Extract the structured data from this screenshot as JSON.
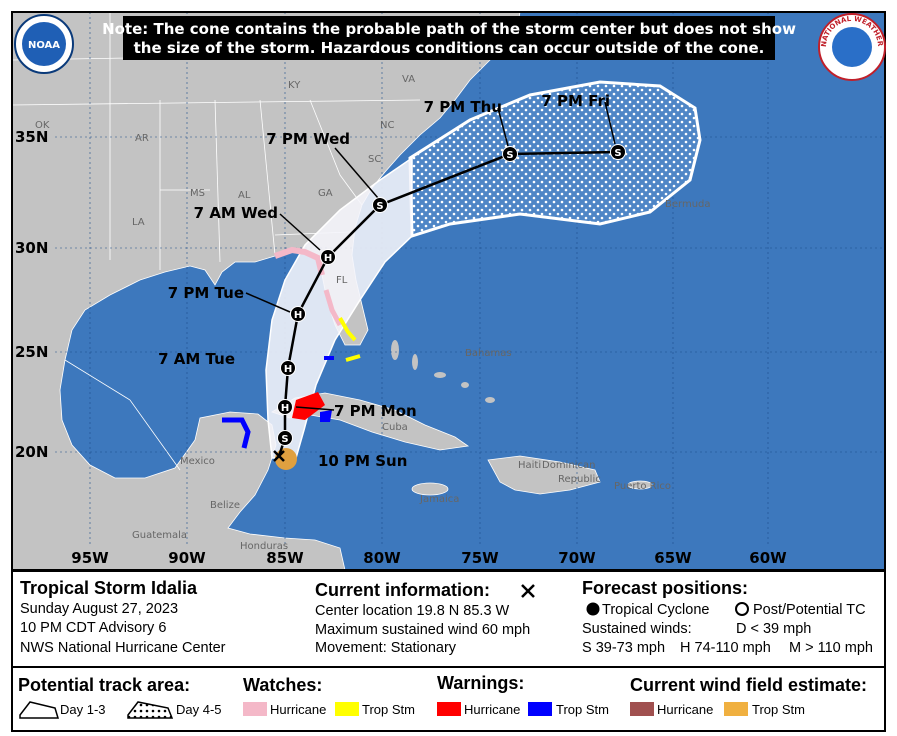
{
  "note": {
    "lines": [
      "Note: The cone contains the probable path of the storm center but does not show",
      "the size of the storm. Hazardous conditions can occur outside of the cone."
    ]
  },
  "logos": {
    "noaa": "NOAA",
    "nws": "NATIONAL WEATHER SERVICE"
  },
  "map": {
    "lat_labels": [
      "35N",
      "30N",
      "25N",
      "20N"
    ],
    "lon_labels": [
      "95W",
      "90W",
      "85W",
      "80W",
      "75W",
      "70W",
      "65W",
      "60W"
    ],
    "places": [
      "KY",
      "VA",
      "OK",
      "AR",
      "NC",
      "SC",
      "MS",
      "AL",
      "GA",
      "LA",
      "FL",
      "Bermuda",
      "Bahamas",
      "Cuba",
      "Mexico",
      "Belize",
      "Guatemala",
      "Honduras",
      "Jamaica",
      "Haiti",
      "Dominican",
      "Republic",
      "Puerto Rico"
    ],
    "track": [
      {
        "label": "10 PM Sun"
      },
      {
        "symbol": "S"
      },
      {
        "symbol": "H",
        "label": "7 PM Mon"
      },
      {
        "symbol": "H",
        "label": "7 AM Tue"
      },
      {
        "symbol": "H",
        "label": "7 PM Tue"
      },
      {
        "symbol": "H",
        "label": "7 AM Wed"
      },
      {
        "symbol": "S",
        "label": "7 PM Wed"
      },
      {
        "symbol": "S",
        "label": "7 PM Thu"
      },
      {
        "symbol": "S",
        "label": "7 PM Fri"
      }
    ]
  },
  "info": {
    "storm": {
      "title": "Tropical Storm Idalia",
      "lines": [
        "Sunday August 27, 2023",
        "10 PM CDT Advisory 6",
        "NWS National Hurricane Center"
      ]
    },
    "current": {
      "title": "Current information:",
      "lines": [
        "Center location 19.8 N 85.3 W",
        "Maximum sustained wind 60 mph",
        "Movement: Stationary"
      ]
    },
    "forecast": {
      "title": "Forecast positions:",
      "tropical": "Tropical Cyclone",
      "post": "Post/Potential TC",
      "winds": "Sustained winds:",
      "d": "D < 39 mph",
      "s": "S 39-73 mph",
      "h": "H 74-110 mph",
      "m": "M > 110 mph"
    }
  },
  "legend": {
    "track_area": {
      "title": "Potential track area:",
      "day13": "Day 1-3",
      "day45": "Day 4-5"
    },
    "watches": {
      "title": "Watches:",
      "hurricane": "Hurricane",
      "tropical_storm": "Trop Stm"
    },
    "warnings": {
      "title": "Warnings:",
      "hurricane": "Hurricane",
      "tropical_storm": "Trop Stm"
    },
    "wind_field": {
      "title": "Current wind field estimate:",
      "hurricane": "Hurricane",
      "tropical_storm": "Trop Stm"
    }
  }
}
